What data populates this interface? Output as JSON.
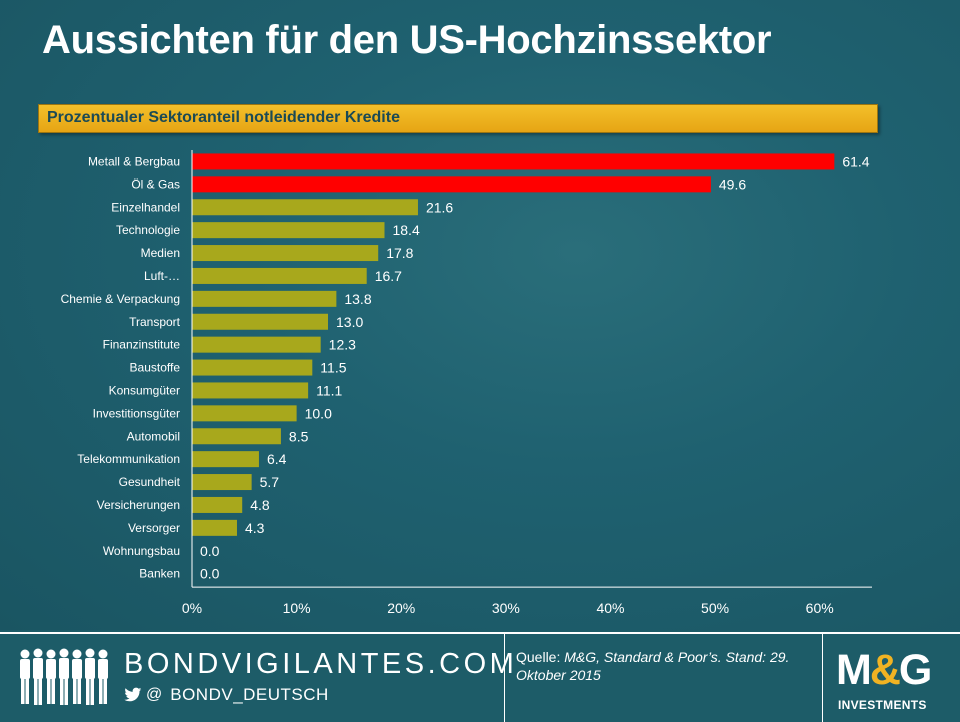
{
  "header": {
    "title": "Aussichten für den US-Hochzinssektor",
    "subtitle": "Prozentualer Sektoranteil notleidender Kredite"
  },
  "chart_data": {
    "type": "bar",
    "orientation": "horizontal",
    "title": "Prozentualer Sektoranteil notleidender Kredite",
    "categories": [
      "Metall & Bergbau",
      "Öl & Gas",
      "Einzelhandel",
      "Technologie",
      "Medien",
      "Luft-…",
      "Chemie & Verpackung",
      "Transport",
      "Finanzinstitute",
      "Baustoffe",
      "Konsumgüter",
      "Investitionsgüter",
      "Automobil",
      "Telekommunikation",
      "Gesundheit",
      "Versicherungen",
      "Versorger",
      "Wohnungsbau",
      "Banken"
    ],
    "values": [
      61.4,
      49.6,
      21.6,
      18.4,
      17.8,
      16.7,
      13.8,
      13.0,
      12.3,
      11.5,
      11.1,
      10.0,
      8.5,
      6.4,
      5.7,
      4.8,
      4.3,
      0.0,
      0.0
    ],
    "value_labels": [
      "61.4",
      "49.6",
      "21.6",
      "18.4",
      "17.8",
      "16.7",
      "13.8",
      "13.0",
      "12.3",
      "11.5",
      "11.1",
      "10.0",
      "8.5",
      "6.4",
      "5.7",
      "4.8",
      "4.3",
      "0.0",
      "0.0"
    ],
    "highlight_count": 2,
    "highlight_color": "#ff0000",
    "bar_color": "#a8a81c",
    "xlim": [
      0,
      65
    ],
    "xticks": [
      0,
      10,
      20,
      30,
      40,
      50,
      60
    ],
    "xtick_labels": [
      "0%",
      "10%",
      "20%",
      "30%",
      "40%",
      "50%",
      "60%"
    ],
    "grid": false,
    "legend": "none"
  },
  "footer": {
    "brand": "BONDVIGILANTES.COM",
    "at_sign": "@",
    "handle": "BONDV_DEUTSCH",
    "source_prefix": "Quelle:",
    "source_text": "M&G, Standard & Poor’s. Stand: 29. Oktober 2015",
    "logo_m": "M",
    "logo_amp": "&",
    "logo_g": "G",
    "logo_sub": "INVESTMENTS"
  },
  "colors": {
    "background": "#1d5c68",
    "subtitle_bar": "#f0b323",
    "subtitle_text": "#1b4a55",
    "accent": "#f0b323"
  }
}
